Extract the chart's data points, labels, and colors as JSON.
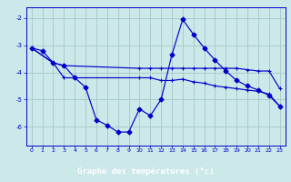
{
  "background_color": "#cce8e8",
  "grid_color": "#aacccc",
  "line_color": "#0000cc",
  "xlabel": "Graphe des températures (°c)",
  "xlabel_color": "#ffffff",
  "xlabel_bg": "#0000cc",
  "ylim": [
    -6.7,
    -1.6
  ],
  "xlim": [
    -0.5,
    23.5
  ],
  "yticks": [
    -6,
    -5,
    -4,
    -3,
    -2
  ],
  "xticks": [
    0,
    1,
    2,
    3,
    4,
    5,
    6,
    7,
    8,
    9,
    10,
    11,
    12,
    13,
    14,
    15,
    16,
    17,
    18,
    19,
    20,
    21,
    22,
    23
  ],
  "series_diamond_x": [
    0,
    1,
    2,
    3,
    4,
    5,
    6,
    7,
    8,
    9,
    10,
    11,
    12,
    13,
    14,
    15,
    16,
    17,
    18,
    19,
    20,
    21,
    22,
    23
  ],
  "series_diamond_y": [
    -3.1,
    -3.2,
    -3.65,
    -3.75,
    -4.2,
    -4.55,
    -5.75,
    -5.95,
    -6.2,
    -6.2,
    -5.35,
    -5.6,
    -5.0,
    -3.35,
    -2.05,
    -2.6,
    -3.1,
    -3.55,
    -3.95,
    -4.3,
    -4.5,
    -4.65,
    -4.85,
    -5.25
  ],
  "series_upper_x": [
    0,
    2,
    3,
    10,
    11,
    12,
    13,
    14,
    15,
    16,
    17,
    18,
    19,
    20,
    21,
    22,
    23
  ],
  "series_upper_y": [
    -3.1,
    -3.65,
    -3.75,
    -3.85,
    -3.85,
    -3.85,
    -3.85,
    -3.85,
    -3.85,
    -3.85,
    -3.85,
    -3.85,
    -3.85,
    -3.9,
    -3.95,
    -3.95,
    -4.6
  ],
  "series_lower_x": [
    0,
    2,
    3,
    10,
    11,
    12,
    13,
    14,
    15,
    16,
    17,
    18,
    19,
    20,
    21,
    22,
    23
  ],
  "series_lower_y": [
    -3.1,
    -3.65,
    -4.2,
    -4.2,
    -4.2,
    -4.3,
    -4.3,
    -4.25,
    -4.35,
    -4.4,
    -4.5,
    -4.55,
    -4.6,
    -4.65,
    -4.7,
    -4.8,
    -5.25
  ]
}
